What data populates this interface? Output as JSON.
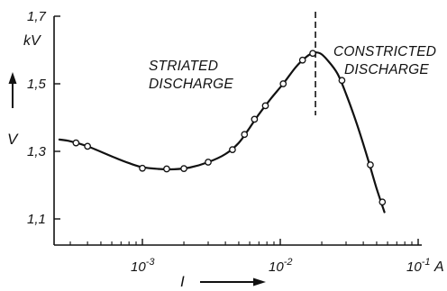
{
  "chart_data": {
    "type": "line",
    "title": "",
    "x_scale": "log",
    "xlim": [
      0.0003,
      0.1
    ],
    "ylim": [
      1.0,
      1.7
    ],
    "xlabel": "I",
    "x_unit": "A",
    "ylabel": "V",
    "y_unit": "kV",
    "grid": false,
    "legend": "none",
    "x_ticks": [
      {
        "value": 0.001,
        "base": "10",
        "exp": "-3"
      },
      {
        "value": 0.01,
        "base": "10",
        "exp": "-2"
      },
      {
        "value": 0.1,
        "base": "10",
        "exp": "-1"
      }
    ],
    "y_ticks": [
      {
        "value": 1.1,
        "label": "1,1"
      },
      {
        "value": 1.3,
        "label": "1,3"
      },
      {
        "value": 1.5,
        "label": "1,5"
      },
      {
        "value": 1.7,
        "label": "1,7"
      }
    ],
    "measured_points": [
      {
        "x": 0.00033,
        "y": 1.325
      },
      {
        "x": 0.0004,
        "y": 1.315
      },
      {
        "x": 0.001,
        "y": 1.25
      },
      {
        "x": 0.0015,
        "y": 1.248
      },
      {
        "x": 0.002,
        "y": 1.249
      },
      {
        "x": 0.003,
        "y": 1.268
      },
      {
        "x": 0.0045,
        "y": 1.305
      },
      {
        "x": 0.0055,
        "y": 1.35
      },
      {
        "x": 0.0065,
        "y": 1.395
      },
      {
        "x": 0.0078,
        "y": 1.435
      },
      {
        "x": 0.0105,
        "y": 1.5
      },
      {
        "x": 0.0145,
        "y": 1.57
      },
      {
        "x": 0.0172,
        "y": 1.59
      },
      {
        "x": 0.028,
        "y": 1.51
      },
      {
        "x": 0.045,
        "y": 1.26
      },
      {
        "x": 0.055,
        "y": 1.15
      }
    ],
    "curve": [
      {
        "x": 0.00025,
        "y": 1.335
      },
      {
        "x": 0.0003,
        "y": 1.33
      },
      {
        "x": 0.0004,
        "y": 1.315
      },
      {
        "x": 0.0006,
        "y": 1.285
      },
      {
        "x": 0.0008,
        "y": 1.265
      },
      {
        "x": 0.001,
        "y": 1.253
      },
      {
        "x": 0.0013,
        "y": 1.248
      },
      {
        "x": 0.0017,
        "y": 1.247
      },
      {
        "x": 0.0022,
        "y": 1.252
      },
      {
        "x": 0.003,
        "y": 1.268
      },
      {
        "x": 0.004,
        "y": 1.292
      },
      {
        "x": 0.005,
        "y": 1.325
      },
      {
        "x": 0.006,
        "y": 1.37
      },
      {
        "x": 0.007,
        "y": 1.41
      },
      {
        "x": 0.0085,
        "y": 1.455
      },
      {
        "x": 0.0105,
        "y": 1.5
      },
      {
        "x": 0.013,
        "y": 1.55
      },
      {
        "x": 0.0155,
        "y": 1.58
      },
      {
        "x": 0.0175,
        "y": 1.592
      },
      {
        "x": 0.0195,
        "y": 1.59
      },
      {
        "x": 0.022,
        "y": 1.57
      },
      {
        "x": 0.026,
        "y": 1.53
      },
      {
        "x": 0.03,
        "y": 1.47
      },
      {
        "x": 0.036,
        "y": 1.38
      },
      {
        "x": 0.043,
        "y": 1.28
      },
      {
        "x": 0.05,
        "y": 1.19
      },
      {
        "x": 0.057,
        "y": 1.12
      }
    ],
    "transition_line_x": 0.018,
    "annotations": [
      {
        "id": "striated",
        "lines": [
          "STRIATED",
          "DISCHARGE"
        ]
      },
      {
        "id": "constricted",
        "lines": [
          "CONSTRICTED",
          "DISCHARGE"
        ]
      }
    ]
  }
}
